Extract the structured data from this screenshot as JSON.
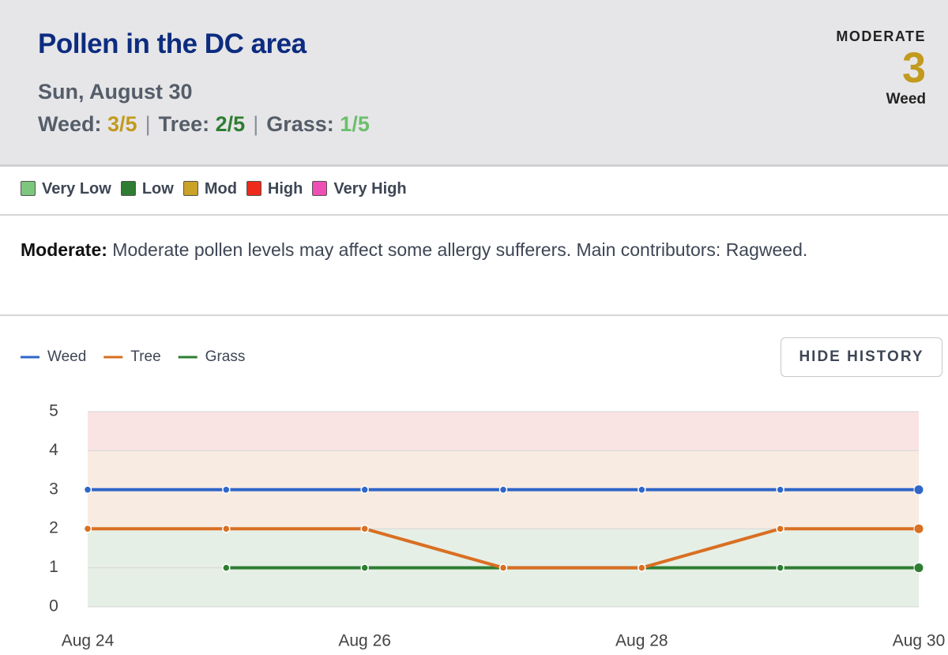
{
  "header": {
    "title": "Pollen in the DC area",
    "date": "Sun, August 30",
    "levels": [
      {
        "label": "Weed:",
        "value": "3/5",
        "color": "#c29a1e"
      },
      {
        "label": "Tree:",
        "value": "2/5",
        "color": "#2e7d32"
      },
      {
        "label": "Grass:",
        "value": "1/5",
        "color": "#6cbf6c"
      }
    ],
    "badge": {
      "level": "MODERATE",
      "value": 3,
      "type": "Weed",
      "color": "#c29a1e"
    }
  },
  "legend": [
    {
      "label": "Very Low",
      "color": "#7dc67d"
    },
    {
      "label": "Low",
      "color": "#2e7d32"
    },
    {
      "label": "Mod",
      "color": "#c9a227"
    },
    {
      "label": "High",
      "color": "#ee2a1a"
    },
    {
      "label": "Very High",
      "color": "#ee4fb4"
    }
  ],
  "description": {
    "label": "Moderate:",
    "text": "Moderate pollen levels may affect some allergy sufferers. Main contributors: Ragweed."
  },
  "button": "HIDE HISTORY",
  "chart_data": {
    "type": "line",
    "categories": [
      "Aug 24",
      null,
      "Aug 26",
      null,
      "Aug 28",
      null,
      "Aug 30"
    ],
    "series": [
      {
        "name": "Weed",
        "color": "#2f66c9",
        "values": [
          3,
          3,
          3,
          3,
          3,
          3,
          3
        ]
      },
      {
        "name": "Tree",
        "color": "#d96f22",
        "values": [
          2,
          2,
          2,
          1,
          1,
          2,
          2
        ]
      },
      {
        "name": "Grass",
        "color": "#2e7d32",
        "values": [
          null,
          1,
          1,
          1,
          1,
          1,
          1
        ]
      }
    ],
    "ylim": [
      0,
      5
    ],
    "yticks": [
      0,
      1,
      2,
      3,
      4,
      5
    ],
    "grid": true,
    "bands": [
      {
        "from": 0,
        "to": 2,
        "color": "#e6efe6"
      },
      {
        "from": 2,
        "to": 4,
        "color": "#f8ebe1"
      },
      {
        "from": 4,
        "to": 5,
        "color": "#f9e3e3"
      }
    ]
  }
}
